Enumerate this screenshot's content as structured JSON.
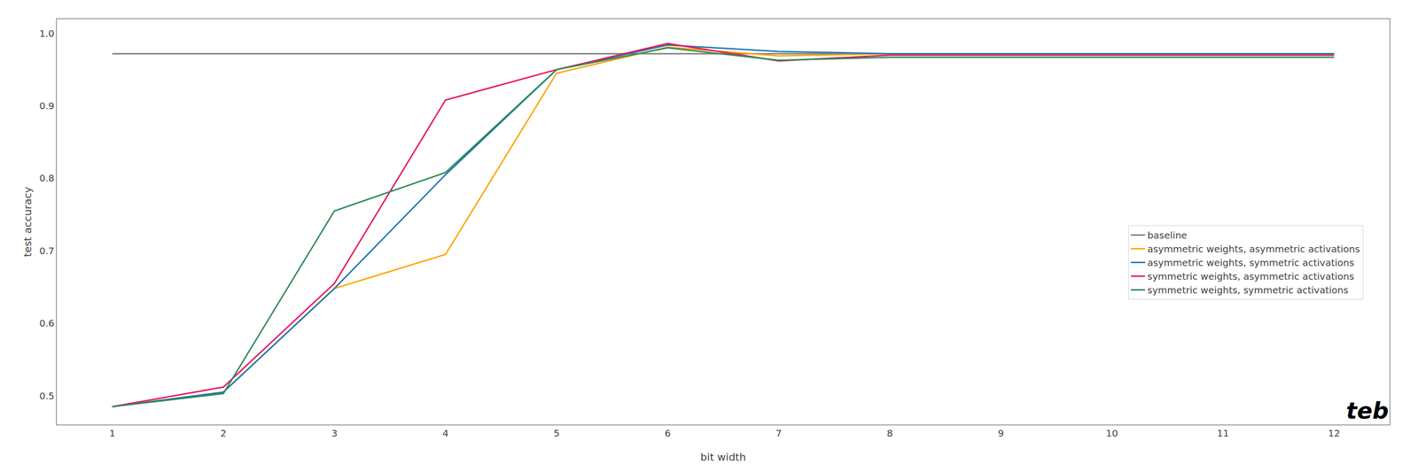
{
  "chart_data": {
    "type": "line",
    "x_label": "bit width",
    "y_label": "test accuracy",
    "x": [
      1,
      2,
      3,
      4,
      5,
      6,
      7,
      8,
      9,
      10,
      11,
      12
    ],
    "series": [
      {
        "name": "baseline",
        "color": "#7f7f7f",
        "values": [
          0.972,
          0.972,
          0.972,
          0.972,
          0.972,
          0.972,
          0.972,
          0.972,
          0.972,
          0.972,
          0.972,
          0.972
        ]
      },
      {
        "name": "asymmetric weights, asymmetric activations",
        "color": "#ffa500",
        "values": [
          0.485,
          0.505,
          0.648,
          0.695,
          0.945,
          0.981,
          0.969,
          0.972,
          0.972,
          0.972,
          0.972,
          0.972
        ]
      },
      {
        "name": "asymmetric weights, symmetric activations",
        "color": "#1f77b4",
        "values": [
          0.485,
          0.505,
          0.648,
          0.805,
          0.95,
          0.984,
          0.975,
          0.972,
          0.972,
          0.972,
          0.972,
          0.972
        ]
      },
      {
        "name": "symmetric weights, asymmetric activations",
        "color": "#e8175d",
        "values": [
          0.485,
          0.512,
          0.655,
          0.908,
          0.95,
          0.986,
          0.962,
          0.97,
          0.97,
          0.97,
          0.97,
          0.97
        ]
      },
      {
        "name": "symmetric weights, symmetric activations",
        "color": "#2e8b57",
        "values": [
          0.485,
          0.503,
          0.755,
          0.808,
          0.95,
          0.98,
          0.963,
          0.967,
          0.967,
          0.967,
          0.967,
          0.967
        ]
      }
    ],
    "xlim": [
      0.5,
      12.5
    ],
    "ylim": [
      0.46,
      1.02
    ],
    "xticks": [
      1,
      2,
      3,
      4,
      5,
      6,
      7,
      8,
      9,
      10,
      11,
      12
    ],
    "yticks": [
      0.5,
      0.6,
      0.7,
      0.8,
      0.9,
      {
        "value": 1.0,
        "label": "1.0"
      }
    ],
    "grid": false,
    "legend": "right",
    "annotations": [
      "teb"
    ]
  }
}
